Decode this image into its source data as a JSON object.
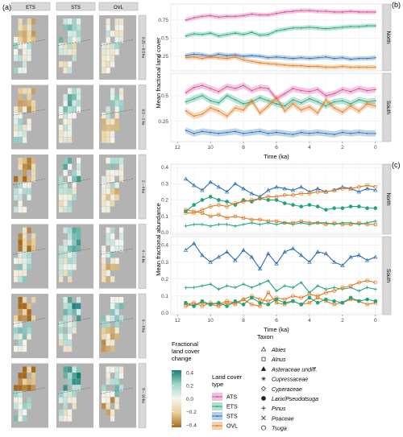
{
  "panel_labels": {
    "a": "(a)",
    "b": "(b)",
    "c": "(c)"
  },
  "maps": {
    "columns": [
      "ETS",
      "STS",
      "OVL"
    ],
    "rows": [
      "0.25 – 0.5 ka",
      "0.5 – 2 ka",
      "2 – 4 ka",
      "4 – 6 ka",
      "6 – 8 ka",
      "8 – 10 ka"
    ]
  },
  "colors": {
    "ATS": "#d44a9a",
    "ETS": "#1fa57a",
    "STS": "#2a6fb5",
    "OVL": "#e07a1c",
    "map_bg": "#b3b3b3",
    "strip_bg": "#d9d9d9"
  },
  "chart_b": {
    "ylabel": "Mean fractional land cover",
    "xlabel": "Time (ka)",
    "facets": [
      "North",
      "South"
    ],
    "xticks": [
      12,
      10,
      8,
      6,
      4,
      2,
      0
    ],
    "yticks": [
      0.25,
      0.5,
      0.75
    ]
  },
  "chart_c": {
    "ylabel": "Mean fractional abundance",
    "xlabel": "Time (ka)",
    "facets": [
      "North",
      "South"
    ],
    "xticks": [
      12,
      10,
      8,
      6,
      4,
      2,
      0
    ],
    "yticks": [
      0.0,
      0.1,
      0.2,
      0.3,
      0.4
    ]
  },
  "legend_change": {
    "title_lines": [
      "Fractional",
      "land cover",
      "change"
    ],
    "ticks": [
      "0.4",
      "0.2",
      "0.0",
      "−0.2",
      "−0.4"
    ]
  },
  "legend_cover": {
    "title_lines": [
      "Land cover",
      "type"
    ],
    "items": [
      "ATS",
      "ETS",
      "STS",
      "OVL"
    ]
  },
  "legend_taxon": {
    "title": "Taxon",
    "items": [
      {
        "label": "Abies",
        "shape": "triangle"
      },
      {
        "label": "Alnus",
        "shape": "square"
      },
      {
        "label": "Asteraceae undiff.",
        "shape": "filled-triangle"
      },
      {
        "label": "Cupressaceae",
        "shape": "asterisk"
      },
      {
        "label": "Cyperaceae",
        "shape": "diamond"
      },
      {
        "label": "Larix/Pseudotsuga",
        "shape": "filled-circle"
      },
      {
        "label": "Pinus",
        "shape": "plus"
      },
      {
        "label": "Poaceae",
        "shape": "cross"
      },
      {
        "label": "Tsuga",
        "shape": "circle"
      }
    ]
  },
  "chart_data": [
    {
      "type": "line",
      "panel": "b",
      "facet": "North",
      "x": [
        11.5,
        11,
        10.5,
        10,
        9.5,
        9,
        8.5,
        8,
        7.5,
        7,
        6.5,
        6,
        5.5,
        5,
        4.5,
        4,
        3.5,
        3,
        2.5,
        2,
        1.5,
        1,
        0.5,
        0
      ],
      "ylim": [
        0.05,
        0.97
      ],
      "series": [
        {
          "name": "ATS",
          "values": [
            0.75,
            0.78,
            0.8,
            0.81,
            0.79,
            0.8,
            0.8,
            0.81,
            0.83,
            0.82,
            0.82,
            0.84,
            0.86,
            0.87,
            0.88,
            0.88,
            0.87,
            0.87,
            0.86,
            0.86,
            0.87,
            0.86,
            0.86,
            0.86
          ]
        },
        {
          "name": "ETS",
          "values": [
            0.53,
            0.56,
            0.55,
            0.57,
            0.53,
            0.55,
            0.57,
            0.55,
            0.58,
            0.54,
            0.55,
            0.6,
            0.62,
            0.64,
            0.64,
            0.65,
            0.64,
            0.63,
            0.64,
            0.65,
            0.66,
            0.66,
            0.67,
            0.67
          ]
        },
        {
          "name": "STS",
          "values": [
            0.26,
            0.28,
            0.27,
            0.25,
            0.28,
            0.26,
            0.27,
            0.25,
            0.26,
            0.25,
            0.23,
            0.24,
            0.23,
            0.22,
            0.23,
            0.22,
            0.23,
            0.24,
            0.22,
            0.23,
            0.21,
            0.22,
            0.22,
            0.23
          ]
        },
        {
          "name": "OVL",
          "values": [
            0.23,
            0.24,
            0.22,
            0.24,
            0.23,
            0.22,
            0.24,
            0.2,
            0.18,
            0.16,
            0.15,
            0.14,
            0.13,
            0.12,
            0.12,
            0.11,
            0.11,
            0.1,
            0.1,
            0.11,
            0.1,
            0.1,
            0.1,
            0.1
          ]
        }
      ]
    },
    {
      "type": "line",
      "panel": "b",
      "facet": "South",
      "x": [
        11.5,
        11,
        10.5,
        10,
        9.5,
        9,
        8.5,
        8,
        7.5,
        7,
        6.5,
        6,
        5.5,
        5,
        4.5,
        4,
        3.5,
        3,
        2.5,
        2,
        1.5,
        1,
        0.5,
        0
      ],
      "ylim": [
        0.05,
        0.72
      ],
      "series": [
        {
          "name": "ATS",
          "values": [
            0.53,
            0.58,
            0.6,
            0.57,
            0.54,
            0.59,
            0.57,
            0.6,
            0.55,
            0.58,
            0.57,
            0.47,
            0.52,
            0.57,
            0.55,
            0.54,
            0.56,
            0.5,
            0.52,
            0.56,
            0.54,
            0.57,
            0.55,
            0.56
          ]
        },
        {
          "name": "ETS",
          "values": [
            0.44,
            0.47,
            0.5,
            0.45,
            0.43,
            0.5,
            0.46,
            0.42,
            0.44,
            0.48,
            0.45,
            0.42,
            0.4,
            0.46,
            0.43,
            0.47,
            0.44,
            0.4,
            0.44,
            0.45,
            0.42,
            0.46,
            0.44,
            0.45
          ]
        },
        {
          "name": "STS",
          "values": [
            0.16,
            0.13,
            0.15,
            0.14,
            0.13,
            0.14,
            0.15,
            0.13,
            0.14,
            0.15,
            0.13,
            0.14,
            0.13,
            0.12,
            0.14,
            0.13,
            0.14,
            0.13,
            0.12,
            0.14,
            0.13,
            0.14,
            0.13,
            0.13
          ]
        },
        {
          "name": "OVL",
          "values": [
            0.35,
            0.3,
            0.32,
            0.38,
            0.35,
            0.3,
            0.38,
            0.36,
            0.45,
            0.33,
            0.4,
            0.48,
            0.35,
            0.42,
            0.36,
            0.39,
            0.33,
            0.46,
            0.38,
            0.34,
            0.4,
            0.35,
            0.42,
            0.4
          ]
        }
      ]
    },
    {
      "type": "line",
      "panel": "c",
      "facet": "North",
      "x": [
        11.5,
        11,
        10.5,
        10,
        9.5,
        9,
        8.5,
        8,
        7.5,
        7,
        6.5,
        6,
        5.5,
        5,
        4.5,
        4,
        3.5,
        3,
        2.5,
        2,
        1.5,
        1,
        0.5,
        0
      ],
      "ylim": [
        -0.01,
        0.42
      ],
      "series": [
        {
          "name": "Abies",
          "values": [
            0.33,
            0.29,
            0.26,
            0.31,
            0.28,
            0.25,
            0.3,
            0.27,
            0.24,
            0.22,
            0.26,
            0.28,
            0.27,
            0.26,
            0.28,
            0.25,
            0.27,
            0.25,
            0.26,
            0.28,
            0.27,
            0.25,
            0.27,
            0.26
          ]
        },
        {
          "name": "Alnus",
          "values": [
            0.14,
            0.13,
            0.12,
            0.1,
            0.11,
            0.09,
            0.1,
            0.09,
            0.08,
            0.08,
            0.07,
            0.07,
            0.06,
            0.06,
            0.07,
            0.06,
            0.06,
            0.05,
            0.06,
            0.05,
            0.05,
            0.06,
            0.05,
            0.05
          ]
        },
        {
          "name": "Larix/Pseudotsuga",
          "values": [
            0.13,
            0.17,
            0.2,
            0.22,
            0.2,
            0.19,
            0.17,
            0.2,
            0.19,
            0.21,
            0.2,
            0.2,
            0.18,
            0.17,
            0.16,
            0.17,
            0.16,
            0.14,
            0.15,
            0.15,
            0.16,
            0.16,
            0.15,
            0.15
          ]
        },
        {
          "name": "Pinus",
          "values": [
            0.04,
            0.05,
            0.05,
            0.04,
            0.05,
            0.05,
            0.04,
            0.05,
            0.06,
            0.05,
            0.06,
            0.05,
            0.06,
            0.05,
            0.06,
            0.05,
            0.06,
            0.06,
            0.05,
            0.06,
            0.06,
            0.05,
            0.06,
            0.07
          ]
        },
        {
          "name": "Tsuga",
          "values": [
            0.12,
            0.12,
            0.14,
            0.16,
            0.17,
            0.16,
            0.18,
            0.19,
            0.2,
            0.21,
            0.22,
            0.22,
            0.23,
            0.23,
            0.24,
            0.24,
            0.25,
            0.25,
            0.26,
            0.27,
            0.27,
            0.28,
            0.29,
            0.28
          ]
        }
      ]
    },
    {
      "type": "line",
      "panel": "c",
      "facet": "South",
      "x": [
        11.5,
        11,
        10.5,
        10,
        9.5,
        9,
        8.5,
        8,
        7.5,
        7,
        6.5,
        6,
        5.5,
        5,
        4.5,
        4,
        3.5,
        3,
        2.5,
        2,
        1.5,
        1,
        0.5,
        0
      ],
      "ylim": [
        -0.01,
        0.45
      ],
      "series": [
        {
          "name": "Abies",
          "values": [
            0.37,
            0.41,
            0.34,
            0.3,
            0.33,
            0.36,
            0.31,
            0.37,
            0.33,
            0.26,
            0.35,
            0.29,
            0.36,
            0.38,
            0.34,
            0.3,
            0.36,
            0.35,
            0.3,
            0.28,
            0.33,
            0.34,
            0.31,
            0.33
          ]
        },
        {
          "name": "Pinus",
          "values": [
            0.15,
            0.15,
            0.16,
            0.17,
            0.14,
            0.16,
            0.15,
            0.17,
            0.15,
            0.17,
            0.19,
            0.13,
            0.16,
            0.15,
            0.18,
            0.12,
            0.16,
            0.14,
            0.15,
            0.14,
            0.15,
            0.13,
            0.15,
            0.14
          ]
        },
        {
          "name": "Tsuga",
          "values": [
            0.05,
            0.06,
            0.04,
            0.06,
            0.05,
            0.07,
            0.06,
            0.08,
            0.1,
            0.08,
            0.07,
            0.09,
            0.08,
            0.1,
            0.09,
            0.11,
            0.1,
            0.12,
            0.13,
            0.15,
            0.16,
            0.18,
            0.19,
            0.18
          ]
        },
        {
          "name": "Alnus",
          "values": [
            0.04,
            0.05,
            0.06,
            0.05,
            0.04,
            0.06,
            0.05,
            0.08,
            0.05,
            0.04,
            0.12,
            0.06,
            0.05,
            0.07,
            0.05,
            0.06,
            0.09,
            0.07,
            0.05,
            0.06,
            0.08,
            0.07,
            0.05,
            0.06
          ]
        },
        {
          "name": "Larix/Pseudotsuga",
          "values": [
            0.06,
            0.04,
            0.07,
            0.05,
            0.06,
            0.04,
            0.07,
            0.05,
            0.09,
            0.06,
            0.05,
            0.08,
            0.06,
            0.07,
            0.05,
            0.09,
            0.06,
            0.08,
            0.07,
            0.06,
            0.09,
            0.07,
            0.08,
            0.07
          ]
        }
      ]
    }
  ]
}
